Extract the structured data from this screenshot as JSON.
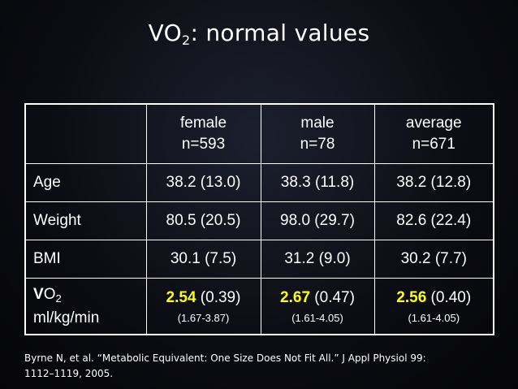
{
  "title": {
    "main": "VO",
    "sub": "2",
    "rest": ": normal values"
  },
  "table": {
    "headers": [
      {
        "label": "",
        "n": ""
      },
      {
        "label": "female",
        "n": "n=593"
      },
      {
        "label": "male",
        "n": "n=78"
      },
      {
        "label": "average",
        "n": "n=671"
      }
    ],
    "rows": [
      {
        "label": "Age",
        "cells": [
          "38.2 (13.0)",
          "38.3 (11.8)",
          "38.2 (12.8)"
        ]
      },
      {
        "label": "Weight",
        "cells": [
          "80.5 (20.5)",
          "98.0 (29.7)",
          "82.6 (22.4)"
        ]
      },
      {
        "label": "BMI",
        "cells": [
          "30.1 (7.5)",
          "31.2 (9.0)",
          "30.2 (7.7)"
        ]
      }
    ],
    "vo2_row": {
      "label_v": "V",
      "label_o": "O",
      "label_sub": "2",
      "label_units": "ml/kg/min",
      "cells": [
        {
          "mean": "2.54",
          "sd": " (0.39)",
          "ci": "(1.67-3.87)"
        },
        {
          "mean": "2.67",
          "sd": " (0.47)",
          "ci": "(1.61-4.05)"
        },
        {
          "mean": "2.56",
          "sd": " (0.40)",
          "ci": "(1.61-4.05)"
        }
      ]
    }
  },
  "citation": {
    "line1": "Byrne N, et al. “Metabolic Equivalent: One Size Does Not Fit All.”  J Appl Physiol 99:",
    "line2": "1112–1119, 2005."
  },
  "colors": {
    "background": "#0b0c12",
    "text": "#ffffff",
    "highlight": "#ffff00"
  }
}
